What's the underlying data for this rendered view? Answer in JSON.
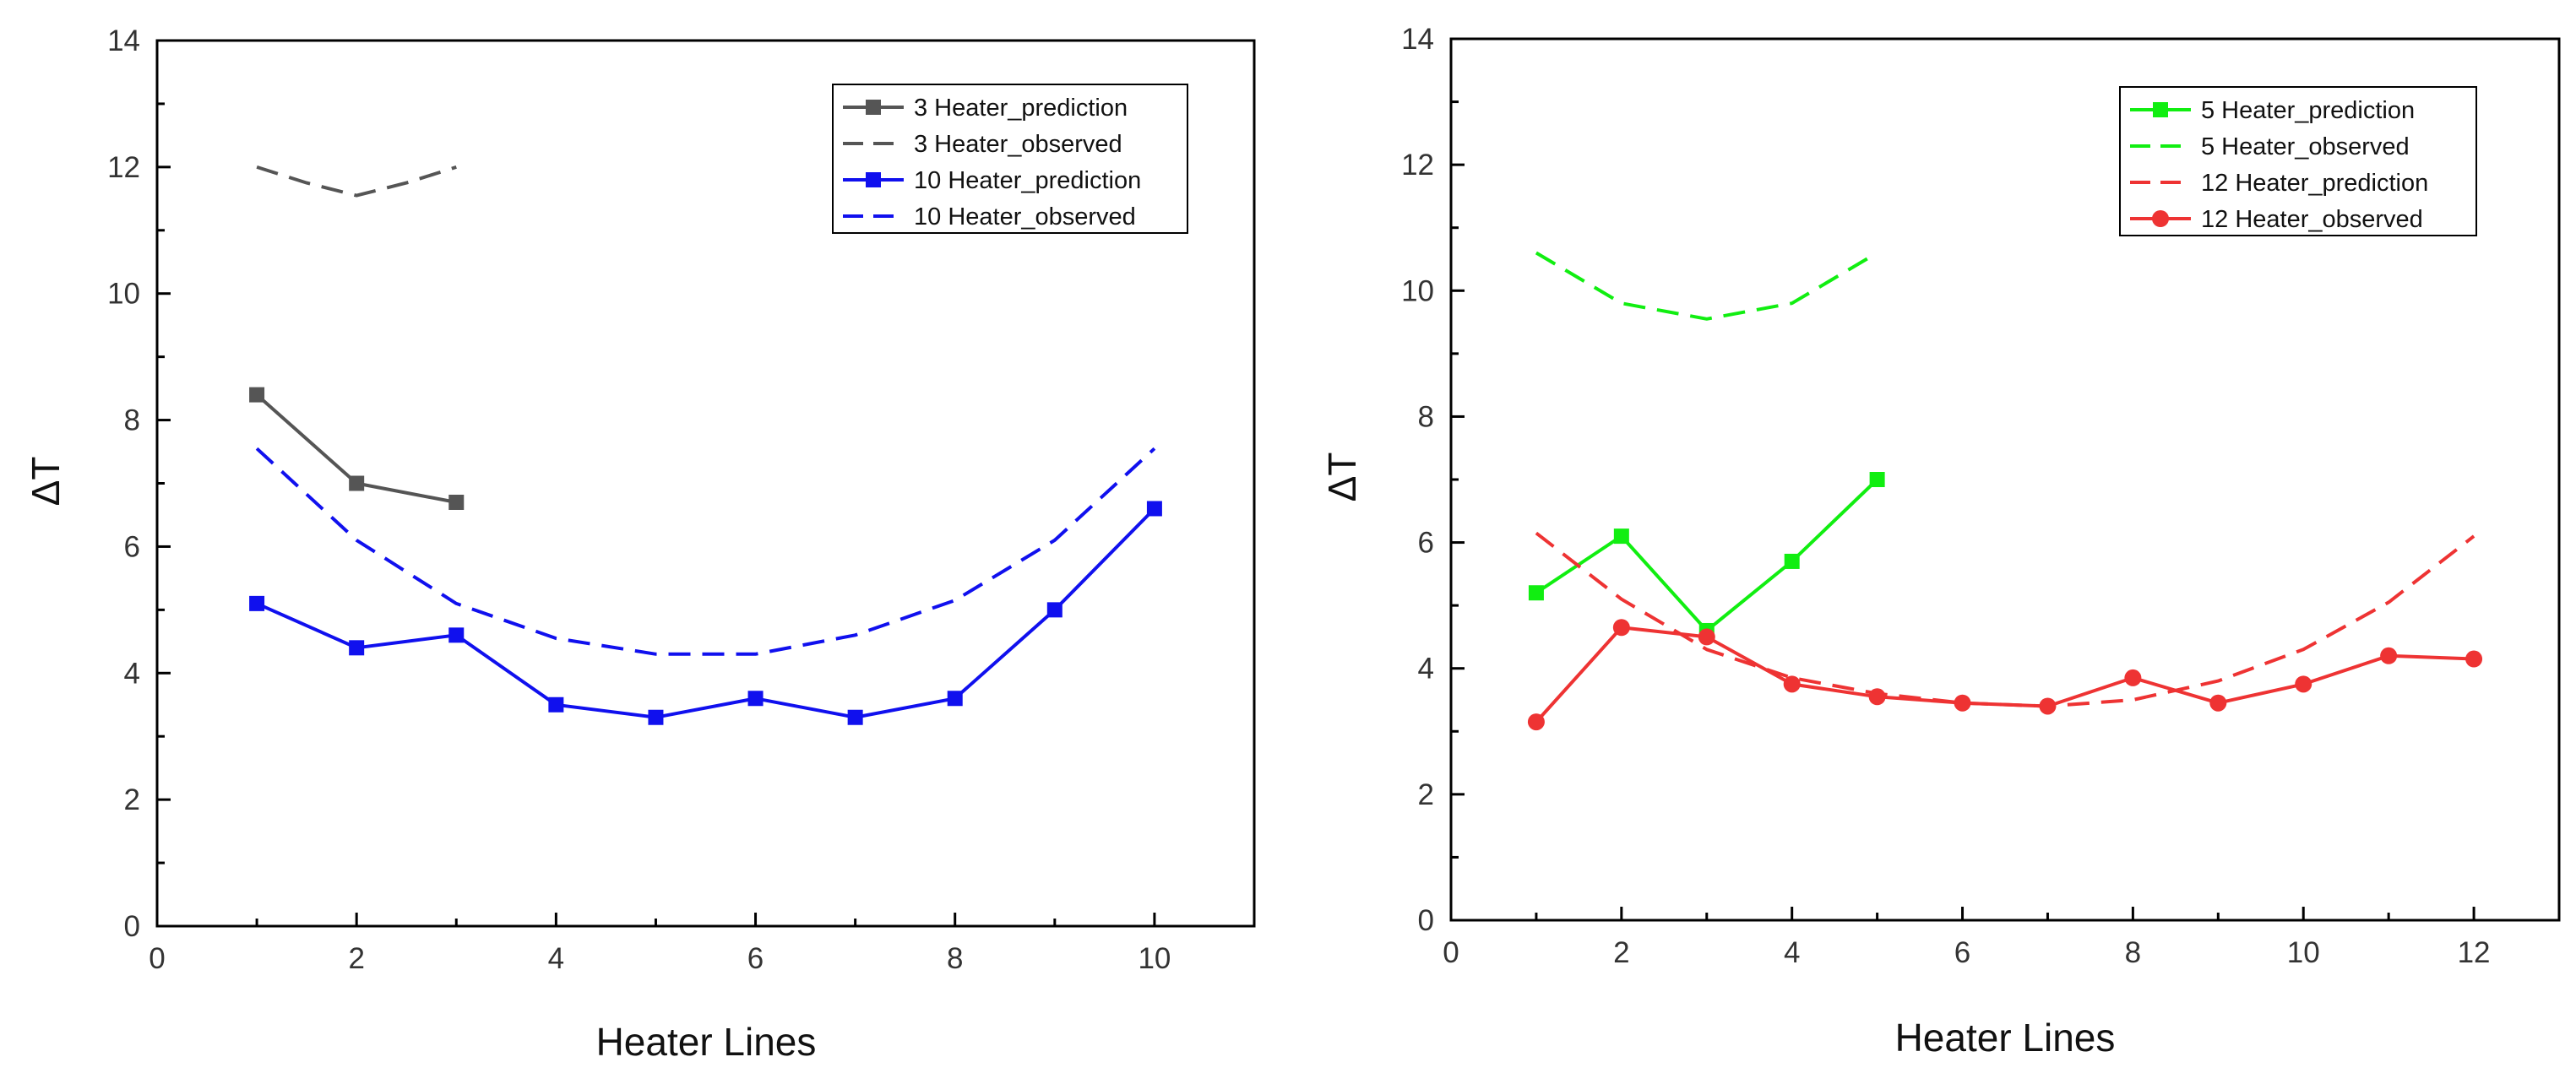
{
  "chart_data": [
    {
      "type": "line",
      "xlabel": "Heater Lines",
      "ylabel": "ΔT",
      "xlim": [
        0,
        11
      ],
      "ylim": [
        0,
        14
      ],
      "xticks": [
        0,
        2,
        4,
        6,
        8,
        10
      ],
      "yticks": [
        0,
        2,
        4,
        6,
        8,
        10,
        12,
        14
      ],
      "grid": false,
      "legend_position": "top-right",
      "series": [
        {
          "name": "3 Heater_prediction",
          "color": "#555555",
          "line_style": "solid",
          "marker": "square",
          "x": [
            1,
            2,
            3
          ],
          "values": [
            8.4,
            7.0,
            6.7
          ]
        },
        {
          "name": "3 Heater_observed",
          "color": "#555555",
          "line_style": "dashed",
          "marker": "none",
          "x": [
            1,
            1.5,
            2,
            2.5,
            3
          ],
          "values": [
            12.0,
            11.75,
            11.55,
            11.75,
            12.0
          ]
        },
        {
          "name": "10 Heater_prediction",
          "color": "#1010ee",
          "line_style": "solid",
          "marker": "square",
          "x": [
            1,
            2,
            3,
            4,
            5,
            6,
            7,
            8,
            9,
            10
          ],
          "values": [
            5.1,
            4.4,
            4.6,
            3.5,
            3.3,
            3.6,
            3.3,
            3.6,
            5.0,
            6.6
          ]
        },
        {
          "name": "10 Heater_observed",
          "color": "#1010ee",
          "line_style": "dashed",
          "marker": "none",
          "x": [
            1,
            2,
            3,
            4,
            5,
            6,
            7,
            8,
            9,
            10
          ],
          "values": [
            7.55,
            6.1,
            5.1,
            4.55,
            4.3,
            4.3,
            4.6,
            5.15,
            6.1,
            7.55
          ]
        }
      ]
    },
    {
      "type": "line",
      "xlabel": "Heater Lines",
      "ylabel": "ΔT",
      "xlim": [
        0,
        13
      ],
      "ylim": [
        0,
        14
      ],
      "xticks": [
        0,
        2,
        4,
        6,
        8,
        10,
        12
      ],
      "yticks": [
        0,
        2,
        4,
        6,
        8,
        10,
        12,
        14
      ],
      "grid": false,
      "legend_position": "top-right",
      "series": [
        {
          "name": "5 Heater_prediction",
          "color": "#11ee11",
          "line_style": "solid",
          "marker": "square",
          "x": [
            1,
            2,
            3,
            4,
            5
          ],
          "values": [
            5.2,
            6.1,
            4.6,
            5.7,
            7.0
          ]
        },
        {
          "name": "5 Heater_observed",
          "color": "#11ee11",
          "line_style": "dashed",
          "marker": "none",
          "x": [
            1,
            2,
            3,
            4,
            5
          ],
          "values": [
            10.6,
            9.8,
            9.55,
            9.8,
            10.6
          ]
        },
        {
          "name": "12 Heater_prediction",
          "color": "#ee3333",
          "line_style": "dashed",
          "marker": "none",
          "x": [
            1,
            2,
            3,
            4,
            5,
            6,
            7,
            8,
            9,
            10,
            11,
            12
          ],
          "values": [
            6.15,
            5.1,
            4.3,
            3.85,
            3.6,
            3.45,
            3.4,
            3.5,
            3.8,
            4.3,
            5.05,
            6.1
          ]
        },
        {
          "name": "12 Heater_observed",
          "color": "#ee3333",
          "line_style": "solid",
          "marker": "circle",
          "x": [
            1,
            2,
            3,
            4,
            5,
            6,
            7,
            8,
            9,
            10,
            11,
            12
          ],
          "values": [
            3.15,
            4.65,
            4.5,
            3.75,
            3.55,
            3.45,
            3.4,
            3.85,
            3.45,
            3.75,
            4.2,
            4.15
          ]
        }
      ]
    }
  ]
}
